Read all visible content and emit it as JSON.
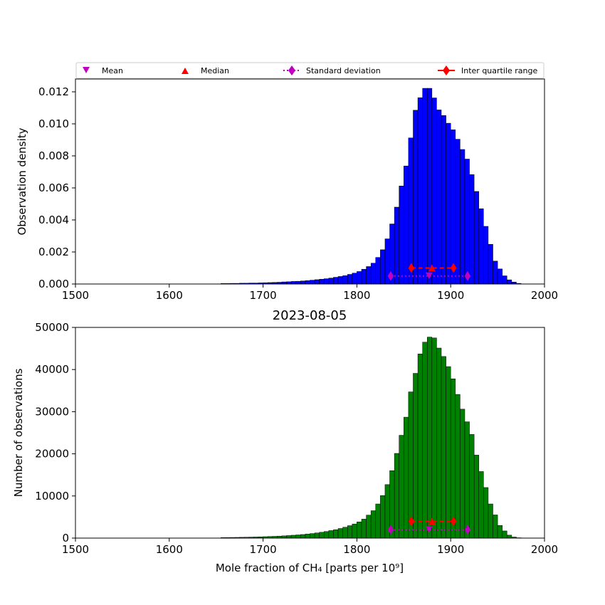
{
  "legend": {
    "mean": "Mean",
    "median": "Median",
    "std": "Standard deviation",
    "iqr": "Inter quartile range"
  },
  "colors": {
    "density_bars": "#0000ff",
    "count_bars": "#008000",
    "mean_marker": "#bf00bf",
    "median_marker": "#ff0000",
    "std": "#bf00bf",
    "iqr": "#ff0000"
  },
  "chart_data": [
    {
      "type": "bar",
      "title": "",
      "xlabel": "",
      "ylabel": "Observation density",
      "xlim": [
        1500,
        2000
      ],
      "ylim": [
        0,
        0.0128
      ],
      "xticks": [
        "1500",
        "1600",
        "1700",
        "1800",
        "1900",
        "2000"
      ],
      "yticks": [
        "0.000",
        "0.002",
        "0.004",
        "0.006",
        "0.008",
        "0.010",
        "0.012"
      ],
      "bin_width": 5,
      "bins_start": [
        1655,
        1660,
        1665,
        1670,
        1675,
        1680,
        1685,
        1690,
        1695,
        1700,
        1705,
        1710,
        1715,
        1720,
        1725,
        1730,
        1735,
        1740,
        1745,
        1750,
        1755,
        1760,
        1765,
        1770,
        1775,
        1780,
        1785,
        1790,
        1795,
        1800,
        1805,
        1810,
        1815,
        1820,
        1825,
        1830,
        1835,
        1840,
        1845,
        1850,
        1855,
        1860,
        1865,
        1870,
        1875,
        1880,
        1885,
        1890,
        1895,
        1900,
        1905,
        1910,
        1915,
        1920,
        1925,
        1930,
        1935,
        1940,
        1945,
        1950,
        1955,
        1960,
        1965,
        1970,
        1975
      ],
      "values": [
        3e-05,
        3e-05,
        4e-05,
        4e-05,
        5e-05,
        5e-05,
        6e-05,
        6e-05,
        7e-05,
        8e-05,
        9e-05,
        0.0001,
        0.00011,
        0.00013,
        0.00014,
        0.00016,
        0.00017,
        0.00019,
        0.00021,
        0.00024,
        0.00027,
        0.0003,
        0.00033,
        0.00037,
        0.00042,
        0.00047,
        0.00052,
        0.0006,
        0.00068,
        0.00078,
        0.00092,
        0.00109,
        0.0013,
        0.00166,
        0.00214,
        0.00282,
        0.00375,
        0.0048,
        0.00612,
        0.00737,
        0.00912,
        0.01085,
        0.01163,
        0.01222,
        0.01222,
        0.01162,
        0.01087,
        0.01052,
        0.01004,
        0.00963,
        0.00904,
        0.0084,
        0.0078,
        0.00683,
        0.00578,
        0.0047,
        0.0036,
        0.00248,
        0.00143,
        0.00094,
        0.00051,
        0.00026,
        0.00012,
        4e-05,
        1e-05
      ],
      "markers": {
        "mean": {
          "x": 1877,
          "y": 0.0005
        },
        "median": {
          "x": 1880,
          "y": 0.001
        },
        "std": {
          "x": [
            1836,
            1918
          ],
          "y": 0.0005
        },
        "iqr": {
          "x": [
            1858,
            1903
          ],
          "y": 0.001
        }
      }
    },
    {
      "type": "bar",
      "title": "2023-08-05",
      "xlabel": "Mole fraction of CH₄ [parts per 10⁹]",
      "ylabel": "Number of observations",
      "xlim": [
        1500,
        2000
      ],
      "ylim": [
        0,
        50000
      ],
      "xticks": [
        "1500",
        "1600",
        "1700",
        "1800",
        "1900",
        "2000"
      ],
      "yticks": [
        "0",
        "10000",
        "20000",
        "30000",
        "40000",
        "50000"
      ],
      "bin_width": 5,
      "bins_start": [
        1655,
        1660,
        1665,
        1670,
        1675,
        1680,
        1685,
        1690,
        1695,
        1700,
        1705,
        1710,
        1715,
        1720,
        1725,
        1730,
        1735,
        1740,
        1745,
        1750,
        1755,
        1760,
        1765,
        1770,
        1775,
        1780,
        1785,
        1790,
        1795,
        1800,
        1805,
        1810,
        1815,
        1820,
        1825,
        1830,
        1835,
        1840,
        1845,
        1850,
        1855,
        1860,
        1865,
        1870,
        1875,
        1880,
        1885,
        1890,
        1895,
        1900,
        1905,
        1910,
        1915,
        1920,
        1925,
        1930,
        1935,
        1940,
        1945,
        1950,
        1955,
        1960,
        1965,
        1970,
        1975
      ],
      "values": [
        120,
        130,
        150,
        170,
        190,
        210,
        240,
        260,
        300,
        340,
        380,
        420,
        470,
        530,
        600,
        680,
        760,
        850,
        960,
        1080,
        1220,
        1380,
        1560,
        1780,
        2000,
        2280,
        2580,
        2950,
        3350,
        3850,
        4500,
        5450,
        6500,
        8100,
        10100,
        12700,
        16000,
        20100,
        24400,
        28700,
        34700,
        39100,
        43700,
        46500,
        47700,
        47500,
        45100,
        43100,
        40700,
        37800,
        34100,
        30600,
        27600,
        24600,
        19700,
        15800,
        12000,
        8100,
        5500,
        3000,
        1700,
        700,
        250,
        80,
        20
      ],
      "markers": {
        "mean": {
          "x": 1877,
          "y": 2000
        },
        "median": {
          "x": 1880,
          "y": 4000
        },
        "std": {
          "x": [
            1836,
            1918
          ],
          "y": 2000
        },
        "iqr": {
          "x": [
            1858,
            1903
          ],
          "y": 4000
        }
      }
    }
  ]
}
